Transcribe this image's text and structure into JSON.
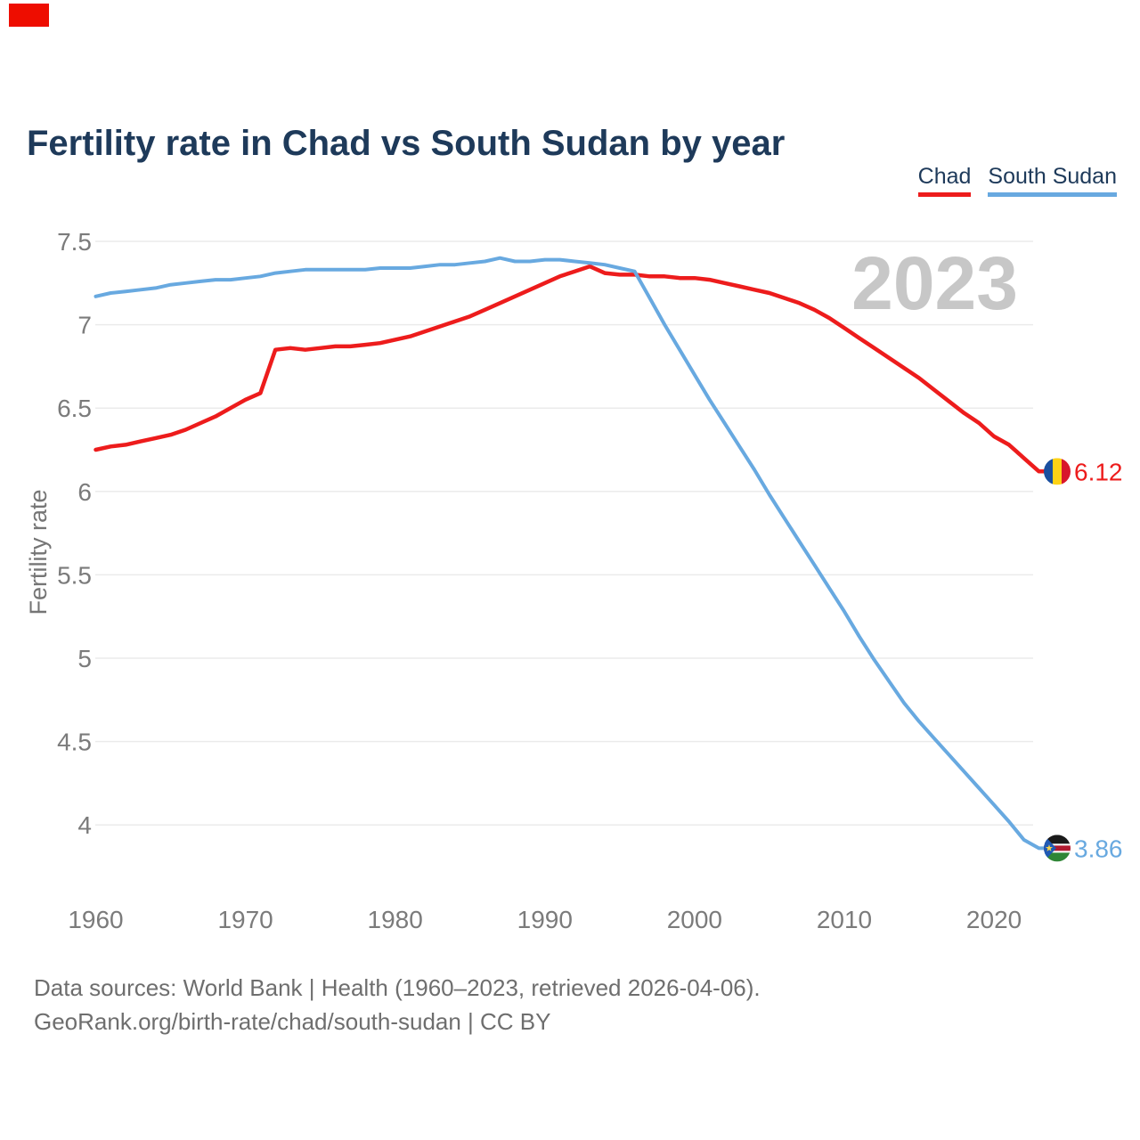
{
  "ui": {
    "corner_marker_color": "#ee0d00",
    "background": "#ffffff",
    "grid_color": "#ebebeb",
    "title_color": "#1e3a5a",
    "tick_color": "#7b7b7b"
  },
  "header": {
    "title": "Fertility rate in Chad vs South Sudan by year"
  },
  "legend": {
    "items": [
      {
        "label": "Chad",
        "color": "#ed1c1c"
      },
      {
        "label": "South Sudan",
        "color": "#68a9e0"
      }
    ]
  },
  "watermark": "2023",
  "footer": {
    "line1": "Data sources: World Bank | Health (1960–2023, retrieved 2026-04-06).",
    "line2": "GeoRank.org/birth-rate/chad/south-sudan | CC BY"
  },
  "chart_data": {
    "type": "line",
    "title": "Fertility rate in Chad vs South Sudan by year",
    "xlabel": "",
    "ylabel": "Fertility rate",
    "grid": "horizontal",
    "legend_position": "top-right",
    "xlim": [
      1960,
      2023
    ],
    "ylim": [
      3.7,
      7.55
    ],
    "x_ticks": [
      1960,
      1970,
      1980,
      1990,
      2000,
      2010,
      2020
    ],
    "y_ticks": [
      7.5,
      7,
      6.5,
      6,
      5.5,
      5,
      4.5,
      4
    ],
    "years": [
      1960,
      1961,
      1962,
      1963,
      1964,
      1965,
      1966,
      1967,
      1968,
      1969,
      1970,
      1971,
      1972,
      1973,
      1974,
      1975,
      1976,
      1977,
      1978,
      1979,
      1980,
      1981,
      1982,
      1983,
      1984,
      1985,
      1986,
      1987,
      1988,
      1989,
      1990,
      1991,
      1992,
      1993,
      1994,
      1995,
      1996,
      1997,
      1998,
      1999,
      2000,
      2001,
      2002,
      2003,
      2004,
      2005,
      2006,
      2007,
      2008,
      2009,
      2010,
      2011,
      2012,
      2013,
      2014,
      2015,
      2016,
      2017,
      2018,
      2019,
      2020,
      2021,
      2022,
      2023
    ],
    "series": [
      {
        "name": "Chad",
        "color": "#ed1c1c",
        "flag": "chad",
        "end_label": "6.12",
        "values": [
          6.25,
          6.27,
          6.28,
          6.3,
          6.32,
          6.34,
          6.37,
          6.41,
          6.45,
          6.5,
          6.55,
          6.59,
          6.85,
          6.86,
          6.85,
          6.86,
          6.87,
          6.87,
          6.88,
          6.89,
          6.91,
          6.93,
          6.96,
          6.99,
          7.02,
          7.05,
          7.09,
          7.13,
          7.17,
          7.21,
          7.25,
          7.29,
          7.32,
          7.35,
          7.31,
          7.3,
          7.3,
          7.29,
          7.29,
          7.28,
          7.28,
          7.27,
          7.25,
          7.23,
          7.21,
          7.19,
          7.16,
          7.13,
          7.09,
          7.04,
          6.98,
          6.92,
          6.86,
          6.8,
          6.74,
          6.68,
          6.61,
          6.54,
          6.47,
          6.41,
          6.33,
          6.28,
          6.2,
          6.12
        ]
      },
      {
        "name": "South Sudan",
        "color": "#68a9e0",
        "flag": "south-sudan",
        "end_label": "3.86",
        "values": [
          7.17,
          7.19,
          7.2,
          7.21,
          7.22,
          7.24,
          7.25,
          7.26,
          7.27,
          7.27,
          7.28,
          7.29,
          7.31,
          7.32,
          7.33,
          7.33,
          7.33,
          7.33,
          7.33,
          7.34,
          7.34,
          7.34,
          7.35,
          7.36,
          7.36,
          7.37,
          7.38,
          7.4,
          7.38,
          7.38,
          7.39,
          7.39,
          7.38,
          7.37,
          7.36,
          7.34,
          7.32,
          7.16,
          7.0,
          6.85,
          6.7,
          6.55,
          6.41,
          6.27,
          6.13,
          5.98,
          5.84,
          5.7,
          5.56,
          5.42,
          5.28,
          5.13,
          4.99,
          4.86,
          4.73,
          4.62,
          4.52,
          4.42,
          4.32,
          4.22,
          4.12,
          4.02,
          3.91,
          3.86
        ]
      }
    ]
  }
}
